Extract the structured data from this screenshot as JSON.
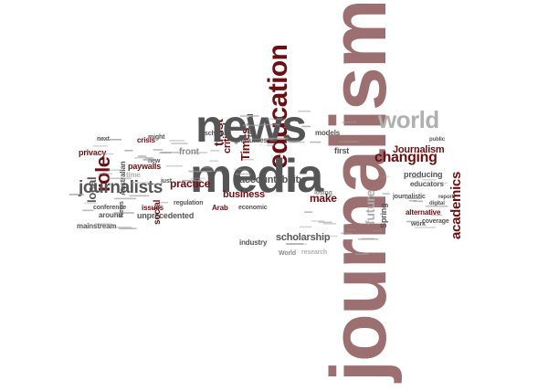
{
  "colors": {
    "dark_red": "#6b0f12",
    "rose": "#9c6f70",
    "dark_gray": "#555555",
    "mid_gray": "#8a8a8a",
    "light_gray": "#b0b0b0"
  },
  "words": [
    {
      "text": "journalism",
      "color": "rose"
    },
    {
      "text": "news",
      "color": "dark_gray"
    },
    {
      "text": "media",
      "color": "dark_gray"
    },
    {
      "text": "education",
      "color": "dark_red"
    },
    {
      "text": "world",
      "color": "light_gray"
    },
    {
      "text": "journalists",
      "color": "dark_gray"
    },
    {
      "text": "role",
      "color": "dark_red"
    },
    {
      "text": "changing",
      "color": "dark_red"
    },
    {
      "text": "Journalism",
      "color": "dark_red"
    },
    {
      "text": "academics",
      "color": "dark_red"
    },
    {
      "text": "future",
      "color": "light_gray"
    },
    {
      "text": "accountability",
      "color": "dark_gray"
    },
    {
      "text": "scholarship",
      "color": "dark_gray"
    },
    {
      "text": "practice",
      "color": "dark_red"
    },
    {
      "text": "business",
      "color": "dark_red"
    },
    {
      "text": "Times",
      "color": "dark_red"
    },
    {
      "text": "trust",
      "color": "dark_red"
    },
    {
      "text": "front",
      "color": "mid_gray"
    },
    {
      "text": "local",
      "color": "dark_gray"
    },
    {
      "text": "privacy",
      "color": "dark_red"
    },
    {
      "text": "crisis",
      "color": "dark_red"
    },
    {
      "text": "paywalls",
      "color": "dark_red"
    },
    {
      "text": "conference",
      "color": "dark_gray"
    },
    {
      "text": "mainstream",
      "color": "dark_gray"
    },
    {
      "text": "unprecedented",
      "color": "dark_gray"
    },
    {
      "text": "regulation",
      "color": "dark_gray"
    },
    {
      "text": "economic",
      "color": "dark_gray"
    },
    {
      "text": "industry",
      "color": "dark_gray"
    },
    {
      "text": "World",
      "color": "mid_gray"
    },
    {
      "text": "research",
      "color": "light_gray"
    },
    {
      "text": "producing",
      "color": "dark_gray"
    },
    {
      "text": "journalistic",
      "color": "dark_gray"
    },
    {
      "text": "alternative",
      "color": "dark_red"
    },
    {
      "text": "educators",
      "color": "dark_gray"
    },
    {
      "text": "coverage",
      "color": "dark_gray"
    },
    {
      "text": "work",
      "color": "dark_gray"
    },
    {
      "text": "models",
      "color": "dark_gray"
    },
    {
      "text": "global",
      "color": "dark_gray"
    },
    {
      "text": "graduates",
      "color": "dark_gray"
    },
    {
      "text": "scholars",
      "color": "dark_gray"
    },
    {
      "text": "first",
      "color": "dark_gray"
    },
    {
      "text": "losing",
      "color": "mid_gray"
    },
    {
      "text": "make",
      "color": "dark_red"
    },
    {
      "text": "time",
      "color": "light_gray"
    },
    {
      "text": "new",
      "color": "dark_gray"
    },
    {
      "text": "just",
      "color": "dark_gray"
    },
    {
      "text": "might",
      "color": "dark_gray"
    },
    {
      "text": "next",
      "color": "dark_gray"
    },
    {
      "text": "around",
      "color": "dark_gray"
    },
    {
      "text": "issues",
      "color": "dark_red"
    },
    {
      "text": "Arab",
      "color": "dark_red"
    },
    {
      "text": "Australian",
      "color": "dark_gray"
    },
    {
      "text": "social",
      "color": "dark_red"
    },
    {
      "text": "News",
      "color": "dark_gray"
    },
    {
      "text": "Spring",
      "color": "dark_gray"
    },
    {
      "text": "critical",
      "color": "dark_red"
    },
    {
      "text": "public",
      "color": "dark_gray"
    },
    {
      "text": "digital",
      "color": "dark_gray"
    },
    {
      "text": "report",
      "color": "dark_gray"
    }
  ]
}
